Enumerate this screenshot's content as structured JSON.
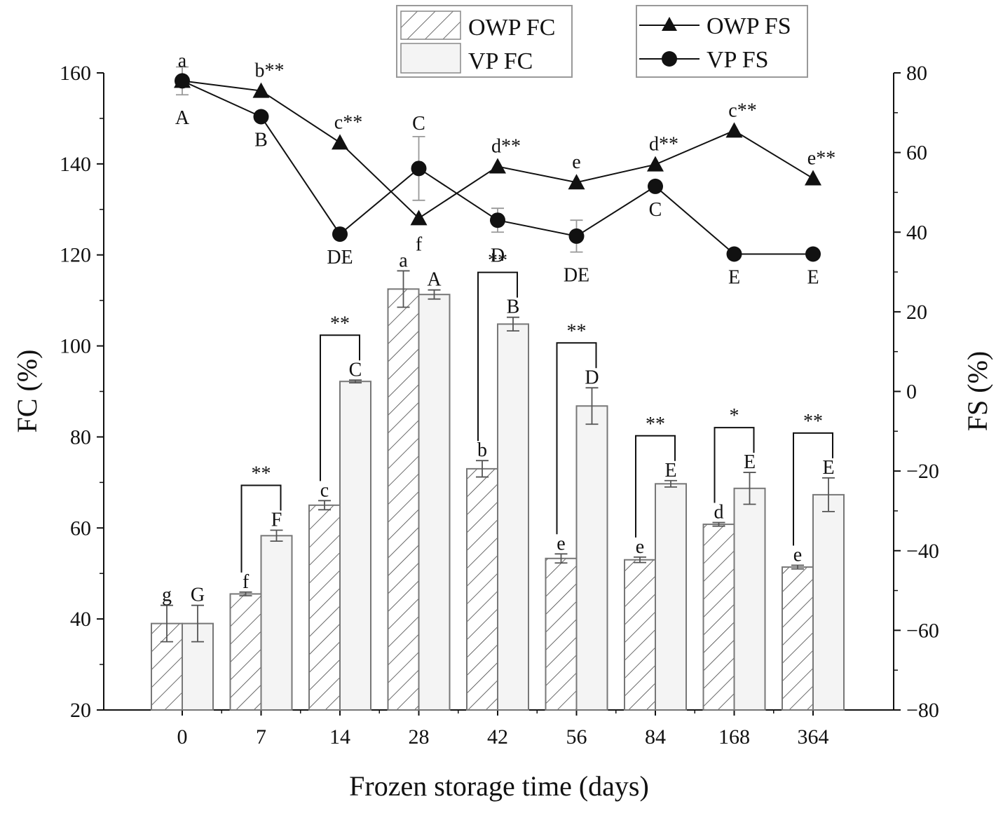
{
  "chart_data": {
    "type": "bar",
    "xlabel": "Frozen storage time (days)",
    "ylabel": "FC (%)",
    "y2label": "FS (%)",
    "categories": [
      "0",
      "7",
      "14",
      "28",
      "42",
      "56",
      "84",
      "168",
      "364"
    ],
    "ylim": [
      20,
      160
    ],
    "y2lim": [
      -80,
      80
    ],
    "yticks": [
      20,
      40,
      60,
      80,
      100,
      120,
      140,
      160
    ],
    "y2ticks": [
      -80,
      -60,
      -40,
      -20,
      0,
      20,
      40,
      60,
      80
    ],
    "bar_series": [
      {
        "name": "OWP FC",
        "pattern": "hatched",
        "values": [
          39,
          45.5,
          65,
          112.5,
          73,
          53.3,
          53,
          60.8,
          51.4
        ],
        "errors": [
          4,
          0.4,
          1,
          4,
          1.8,
          1,
          0.6,
          0.4,
          0.4
        ],
        "letters": [
          "g",
          "f",
          "c",
          "a",
          "b",
          "e",
          "e",
          "d",
          "e"
        ]
      },
      {
        "name": "VP FC",
        "pattern": "light",
        "values": [
          39,
          58.3,
          92.2,
          111.3,
          104.8,
          86.8,
          69.7,
          68.7,
          67.3
        ],
        "errors": [
          4,
          1.2,
          0.3,
          1,
          1.5,
          4,
          0.7,
          3.5,
          3.7
        ],
        "letters": [
          "G",
          "F",
          "C",
          "A",
          "B",
          "D",
          "E",
          "E",
          "E"
        ]
      }
    ],
    "bar_significance": [
      "",
      "**",
      "**",
      "",
      "**",
      "**",
      "**",
      "*",
      "**"
    ],
    "line_series": [
      {
        "name": "OWP FS",
        "marker": "triangle",
        "axis": "right",
        "values": [
          78,
          75.5,
          62.5,
          43.5,
          56.5,
          52.5,
          57,
          65.5,
          53.5
        ],
        "errors": [
          0,
          0,
          0,
          0,
          0,
          0,
          0,
          0,
          0
        ],
        "labels": [
          "a",
          "b**",
          "c**",
          "f",
          "d**",
          "e",
          "d**",
          "c**",
          "e**"
        ]
      },
      {
        "name": "VP FS",
        "marker": "circle",
        "axis": "right",
        "values": [
          78,
          69,
          39.5,
          56,
          43,
          39,
          51.5,
          34.5,
          34.5
        ],
        "errors": [
          3.5,
          0,
          0,
          8,
          3,
          4,
          0,
          0,
          0
        ],
        "labels": [
          "A",
          "B",
          "DE",
          "C",
          "D",
          "DE",
          "C",
          "E",
          "E"
        ]
      }
    ]
  }
}
